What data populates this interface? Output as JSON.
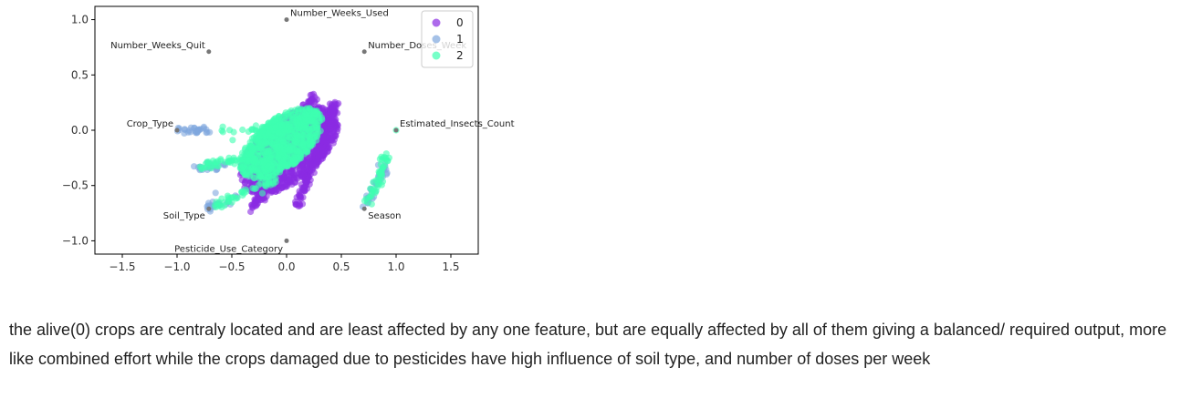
{
  "chart_data": {
    "type": "scatter",
    "xlim": [
      -1.75,
      1.75
    ],
    "ylim": [
      -1.12,
      1.12
    ],
    "x_ticks": [
      -1.5,
      -1.0,
      -0.5,
      0.0,
      0.5,
      1.0,
      1.5
    ],
    "x_tick_labels": [
      "−1.5",
      "−1.0",
      "−0.5",
      "0.0",
      "0.5",
      "1.0",
      "1.5"
    ],
    "y_ticks": [
      1.0,
      0.5,
      0.0,
      -0.5,
      -1.0
    ],
    "y_tick_labels": [
      "1.0",
      "0.5",
      "0.0",
      "−0.5",
      "−1.0"
    ],
    "grid": false,
    "legend": {
      "placement": "top-right",
      "entries": [
        {
          "label": "0",
          "color": "#8a2be2"
        },
        {
          "label": "1",
          "color": "#7fa6dd"
        },
        {
          "label": "2",
          "color": "#3dffb0"
        }
      ]
    },
    "feature_points": [
      {
        "label": "Number_Weeks_Used",
        "x": 0.0,
        "y": 1.0,
        "anchor": "start"
      },
      {
        "label": "Number_Weeks_Quit",
        "x": -0.71,
        "y": 0.71,
        "anchor": "end"
      },
      {
        "label": "Number_Doses_Week",
        "x": 0.71,
        "y": 0.71,
        "anchor": "start"
      },
      {
        "label": "Crop_Type",
        "x": -1.0,
        "y": 0.0,
        "anchor": "end"
      },
      {
        "label": "Estimated_Insects_Count",
        "x": 1.0,
        "y": 0.0,
        "anchor": "start"
      },
      {
        "label": "Soil_Type",
        "x": -0.71,
        "y": -0.71,
        "anchor": "end"
      },
      {
        "label": "Season",
        "x": 0.71,
        "y": -0.71,
        "anchor": "start"
      },
      {
        "label": "Pesticide_Use_Category",
        "x": 0.0,
        "y": -1.0,
        "anchor": "end"
      }
    ],
    "series": [
      {
        "label": "0",
        "color": "#8a2be2",
        "clusters": [
          {
            "shape": "ellipse",
            "cx": 0.02,
            "cy": -0.18,
            "rx": 0.45,
            "ry": 0.33,
            "n": 900
          },
          {
            "shape": "line",
            "x0": -0.3,
            "y0": -0.7,
            "x1": 0.25,
            "y1": 0.32,
            "n": 260
          },
          {
            "shape": "line",
            "x0": 0.1,
            "y0": -0.68,
            "x1": 0.45,
            "y1": 0.25,
            "n": 220
          }
        ]
      },
      {
        "label": "1",
        "color": "#7fa6dd",
        "clusters": [
          {
            "shape": "line",
            "x0": -1.0,
            "y0": 0.0,
            "x1": -0.7,
            "y1": 0.0,
            "n": 30
          },
          {
            "shape": "line",
            "x0": -0.85,
            "y0": -0.35,
            "x1": -0.55,
            "y1": -0.32,
            "n": 25
          },
          {
            "shape": "line",
            "x0": -0.72,
            "y0": -0.71,
            "x1": -0.45,
            "y1": -0.6,
            "n": 25
          },
          {
            "shape": "line",
            "x0": 0.72,
            "y0": -0.7,
            "x1": 0.92,
            "y1": -0.25,
            "n": 40
          }
        ]
      },
      {
        "label": "2",
        "color": "#3dffb0",
        "clusters": [
          {
            "shape": "ellipse",
            "cx": -0.05,
            "cy": -0.12,
            "rx": 0.38,
            "ry": 0.26,
            "n": 800
          },
          {
            "shape": "line",
            "x0": -0.6,
            "y0": 0.0,
            "x1": 0.0,
            "y1": 0.0,
            "n": 40
          },
          {
            "shape": "line",
            "x0": -0.8,
            "y0": -0.35,
            "x1": -0.3,
            "y1": -0.22,
            "n": 40
          },
          {
            "shape": "line",
            "x0": -0.65,
            "y0": -0.68,
            "x1": -0.1,
            "y1": -0.45,
            "n": 50
          },
          {
            "shape": "line",
            "x0": 0.75,
            "y0": -0.65,
            "x1": 0.92,
            "y1": -0.22,
            "n": 50
          },
          {
            "shape": "point",
            "x": 1.0,
            "y": 0.0,
            "n": 1
          }
        ]
      }
    ]
  },
  "caption": "the alive(0) crops are centraly located and are least affected by any one feature, but are equally affected by all of them giving a balanced/ required output, more like combined effort while the crops damaged due to pesticides have high influence of soil type, and number of doses per week"
}
